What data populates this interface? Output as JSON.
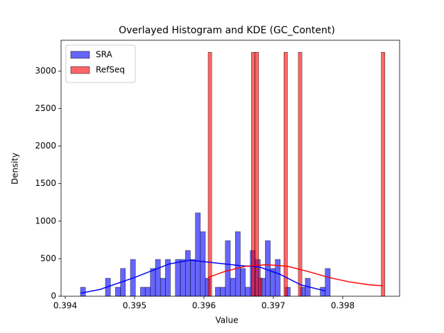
{
  "chart_data": {
    "type": "histogram",
    "title": "Overlayed Histogram and KDE (GC_Content)",
    "xlabel": "Value",
    "ylabel": "Density",
    "xlim": [
      0.39394,
      0.39882
    ],
    "ylim": [
      0,
      3410
    ],
    "xticks": [
      0.394,
      0.395,
      0.396,
      0.397,
      0.398
    ],
    "yticks": [
      0,
      500,
      1000,
      1500,
      2000,
      2500,
      3000
    ],
    "legend": "upper left",
    "series": [
      {
        "name": "SRA",
        "color": "#0000ff",
        "bins": [
          0.39422,
          0.394292,
          0.394364,
          0.394436,
          0.394508,
          0.39458,
          0.394652,
          0.394724,
          0.394796,
          0.394868,
          0.39494,
          0.395012,
          0.395084,
          0.395156,
          0.395228,
          0.3953,
          0.395372,
          0.395444,
          0.395516,
          0.395588,
          0.39566,
          0.395732,
          0.395804,
          0.395876,
          0.395948,
          0.39602,
          0.396092,
          0.396164,
          0.396236,
          0.396308,
          0.39638,
          0.396452,
          0.396524,
          0.396596,
          0.396668,
          0.39674,
          0.396812,
          0.396884,
          0.396956,
          0.397028,
          0.3971,
          0.397172,
          0.397244,
          0.397316,
          0.397388,
          0.39746,
          0.397532,
          0.397604,
          0.397676,
          0.397748,
          0.39782
        ],
        "values": [
          120,
          0,
          0,
          0,
          0,
          240,
          0,
          120,
          370,
          0,
          490,
          0,
          120,
          120,
          370,
          490,
          240,
          490,
          0,
          490,
          490,
          610,
          490,
          1110,
          860,
          240,
          0,
          120,
          120,
          740,
          240,
          860,
          370,
          120,
          610,
          490,
          240,
          740,
          370,
          490,
          0,
          120,
          0,
          0,
          120,
          240,
          0,
          0,
          120,
          370
        ],
        "kde": {
          "x": [
            0.39422,
            0.3945,
            0.395,
            0.3955,
            0.3958,
            0.3962,
            0.3965,
            0.3968,
            0.3971,
            0.3974,
            0.39775
          ],
          "values": [
            40,
            90,
            250,
            430,
            480,
            440,
            410,
            390,
            290,
            150,
            70
          ]
        }
      },
      {
        "name": "RefSeq",
        "color": "#ff0000",
        "bins": [
          0.39606,
          0.396112,
          0.396164,
          0.396216,
          0.396268,
          0.39632,
          0.396372,
          0.396424,
          0.396476,
          0.396528,
          0.39658,
          0.396632,
          0.396684,
          0.396736,
          0.396788,
          0.39684,
          0.396892,
          0.396944,
          0.396996,
          0.397048,
          0.3971,
          0.397152,
          0.397204,
          0.397256,
          0.397308,
          0.39736,
          0.397412,
          0.397464,
          0.397516,
          0.397568,
          0.39762,
          0.397672,
          0.397724,
          0.397776,
          0.397828,
          0.39788,
          0.397932,
          0.397984,
          0.398036,
          0.398088,
          0.39814,
          0.398192,
          0.398244,
          0.398296,
          0.398348,
          0.3984,
          0.398452,
          0.398504,
          0.398556,
          0.398608,
          0.39866
        ],
        "values": [
          3250,
          0,
          0,
          0,
          0,
          0,
          0,
          0,
          0,
          0,
          0,
          0,
          3250,
          3250,
          240,
          0,
          0,
          0,
          0,
          0,
          0,
          3250,
          0,
          0,
          0,
          3250,
          0,
          0,
          0,
          0,
          0,
          0,
          0,
          0,
          0,
          0,
          0,
          0,
          0,
          0,
          0,
          0,
          0,
          0,
          0,
          0,
          0,
          0,
          3250,
          0
        ],
        "kde": {
          "x": [
            0.39606,
            0.3963,
            0.3966,
            0.3969,
            0.3972,
            0.3975,
            0.3978,
            0.3981,
            0.3984,
            0.39858
          ],
          "values": [
            250,
            330,
            400,
            420,
            400,
            330,
            250,
            190,
            150,
            140
          ]
        }
      }
    ]
  }
}
